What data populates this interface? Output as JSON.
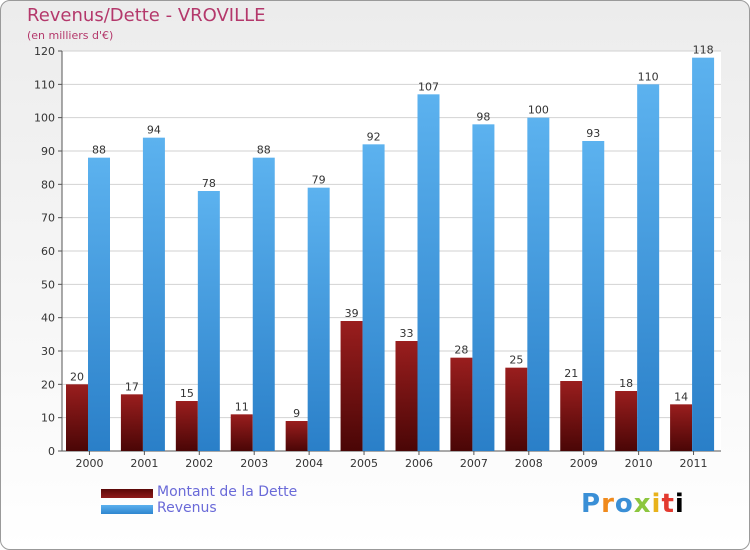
{
  "chart_data": {
    "type": "bar",
    "title": "Revenus/Dette - VROVILLE",
    "subtitle": "(en milliers d'€)",
    "categories": [
      "2000",
      "2001",
      "2002",
      "2003",
      "2004",
      "2005",
      "2006",
      "2007",
      "2008",
      "2009",
      "2010",
      "2011"
    ],
    "series": [
      {
        "name": "Montant de la Dette",
        "color": "#7a1010",
        "values": [
          20,
          17,
          15,
          11,
          9,
          39,
          33,
          28,
          25,
          21,
          18,
          14
        ]
      },
      {
        "name": "Revenus",
        "color": "#3d9ae0",
        "values": [
          88,
          94,
          78,
          88,
          79,
          92,
          107,
          98,
          100,
          93,
          110,
          118
        ]
      }
    ],
    "ylim": [
      0,
      120
    ],
    "yticks": [
      0,
      10,
      20,
      30,
      40,
      50,
      60,
      70,
      80,
      90,
      100,
      110,
      120
    ],
    "grid": true,
    "legend_position": "bottom-left"
  },
  "legend": {
    "items": [
      {
        "label": "Montant de la Dette",
        "color": "#7a1010"
      },
      {
        "label": "Revenus",
        "color": "#3d9ae0"
      }
    ]
  },
  "logo": {
    "letters": [
      "P",
      "r",
      "o",
      "x",
      "i",
      "t",
      "i"
    ]
  }
}
